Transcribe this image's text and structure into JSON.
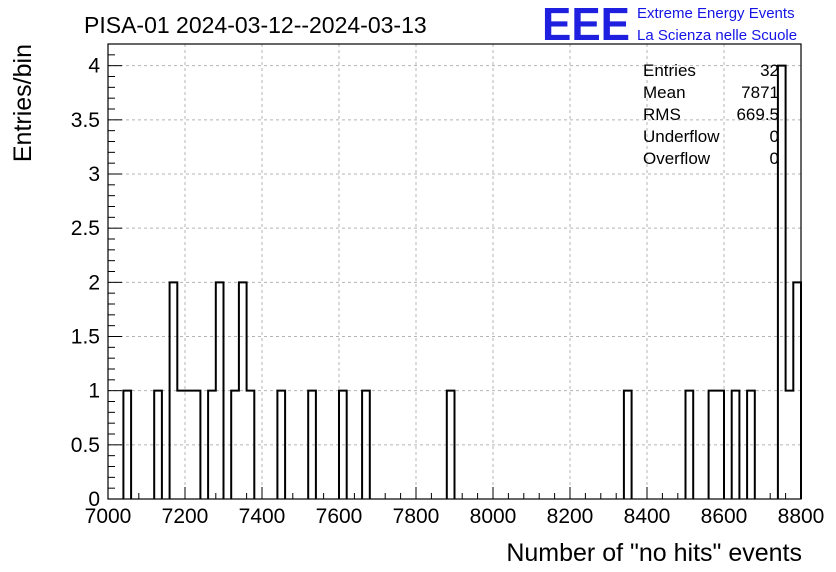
{
  "chart_data": {
    "type": "bar",
    "title": "PISA-01 2024-03-12--2024-03-13",
    "xlabel": "Number of \"no hits\" events",
    "ylabel": "Entries/bin",
    "xlim": [
      7000,
      8800
    ],
    "ylim": [
      0,
      4.2
    ],
    "bin_width": 20,
    "x_ticks": [
      "7000",
      "7200",
      "7400",
      "7600",
      "7800",
      "8000",
      "8200",
      "8400",
      "8600",
      "8800"
    ],
    "y_ticks": [
      "0",
      "0.5",
      "1",
      "1.5",
      "2",
      "2.5",
      "3",
      "3.5",
      "4"
    ],
    "bins": [
      {
        "x": 7040,
        "y": 1
      },
      {
        "x": 7120,
        "y": 1
      },
      {
        "x": 7160,
        "y": 2
      },
      {
        "x": 7180,
        "y": 1
      },
      {
        "x": 7200,
        "y": 1
      },
      {
        "x": 7220,
        "y": 1
      },
      {
        "x": 7260,
        "y": 1
      },
      {
        "x": 7280,
        "y": 2
      },
      {
        "x": 7320,
        "y": 1
      },
      {
        "x": 7340,
        "y": 2
      },
      {
        "x": 7360,
        "y": 1
      },
      {
        "x": 7440,
        "y": 1
      },
      {
        "x": 7520,
        "y": 1
      },
      {
        "x": 7600,
        "y": 1
      },
      {
        "x": 7660,
        "y": 1
      },
      {
        "x": 7880,
        "y": 1
      },
      {
        "x": 8340,
        "y": 1
      },
      {
        "x": 8500,
        "y": 1
      },
      {
        "x": 8560,
        "y": 1
      },
      {
        "x": 8580,
        "y": 1
      },
      {
        "x": 8620,
        "y": 1
      },
      {
        "x": 8660,
        "y": 1
      },
      {
        "x": 8740,
        "y": 4
      },
      {
        "x": 8760,
        "y": 1
      },
      {
        "x": 8780,
        "y": 2
      }
    ],
    "grid": true,
    "stats_placement": "top-right",
    "stats": [
      {
        "label": "Entries",
        "value": "32"
      },
      {
        "label": "Mean",
        "value": "7871"
      },
      {
        "label": "RMS",
        "value": "669.5"
      },
      {
        "label": "Underflow",
        "value": "0"
      },
      {
        "label": "Overflow",
        "value": "0"
      }
    ]
  },
  "logo": {
    "mark": "EEE",
    "line1": "Extreme Energy Events",
    "line2": "La Scienza nelle Scuole",
    "color": "#1414e6"
  }
}
